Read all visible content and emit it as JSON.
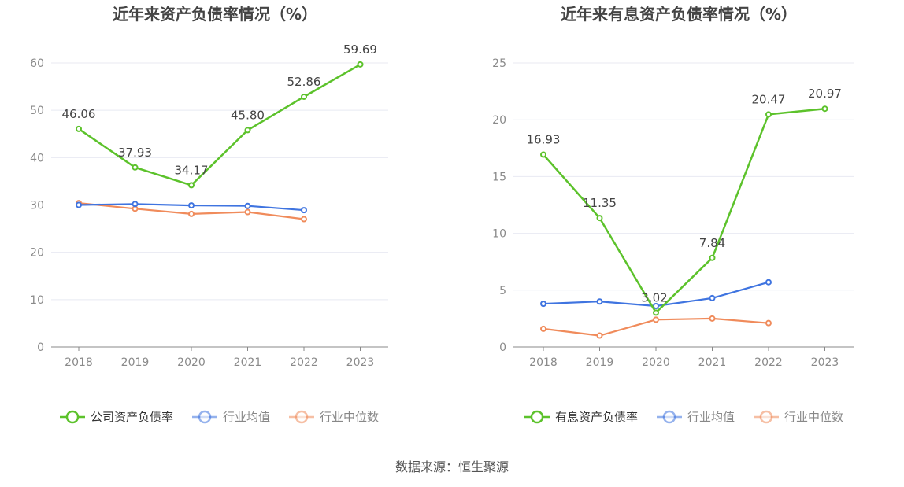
{
  "chart_data": [
    {
      "type": "line",
      "title": "近年来资产负债率情况（%）",
      "categories": [
        "2018",
        "2019",
        "2020",
        "2021",
        "2022",
        "2023"
      ],
      "ylim": [
        0,
        60
      ],
      "yticks": [
        0,
        10,
        20,
        30,
        40,
        50,
        60
      ],
      "grid": true,
      "legend_position": "bottom",
      "series": [
        {
          "name": "公司资产负债率",
          "color": "#5cc22b",
          "values": [
            46.06,
            37.93,
            34.17,
            45.8,
            52.86,
            59.69
          ],
          "labels": [
            "46.06",
            "37.93",
            "34.17",
            "45.80",
            "52.86",
            "59.69"
          ]
        },
        {
          "name": "行业均值",
          "color": "#3f74e0",
          "values": [
            30.0,
            30.2,
            29.9,
            29.8,
            28.9,
            null
          ]
        },
        {
          "name": "行业中位数",
          "color": "#f08b5b",
          "values": [
            30.4,
            29.2,
            28.1,
            28.5,
            27.0,
            null
          ]
        }
      ]
    },
    {
      "type": "line",
      "title": "近年来有息资产负债率情况（%）",
      "categories": [
        "2018",
        "2019",
        "2020",
        "2021",
        "2022",
        "2023"
      ],
      "ylim": [
        0,
        25
      ],
      "yticks": [
        0,
        5,
        10,
        15,
        20,
        25
      ],
      "grid": true,
      "legend_position": "bottom",
      "series": [
        {
          "name": "有息资产负债率",
          "color": "#5cc22b",
          "values": [
            16.93,
            11.35,
            3.02,
            7.84,
            20.47,
            20.97
          ],
          "labels": [
            "16.93",
            "11.35",
            "3.02",
            "7.84",
            "20.47",
            "20.97"
          ]
        },
        {
          "name": "行业均值",
          "color": "#3f74e0",
          "values": [
            3.8,
            4.0,
            3.6,
            4.3,
            5.7,
            null
          ]
        },
        {
          "name": "行业中位数",
          "color": "#f08b5b",
          "values": [
            1.6,
            1.0,
            2.4,
            2.5,
            2.1,
            null
          ]
        }
      ]
    }
  ],
  "source_text": "数据来源：恒生聚源"
}
